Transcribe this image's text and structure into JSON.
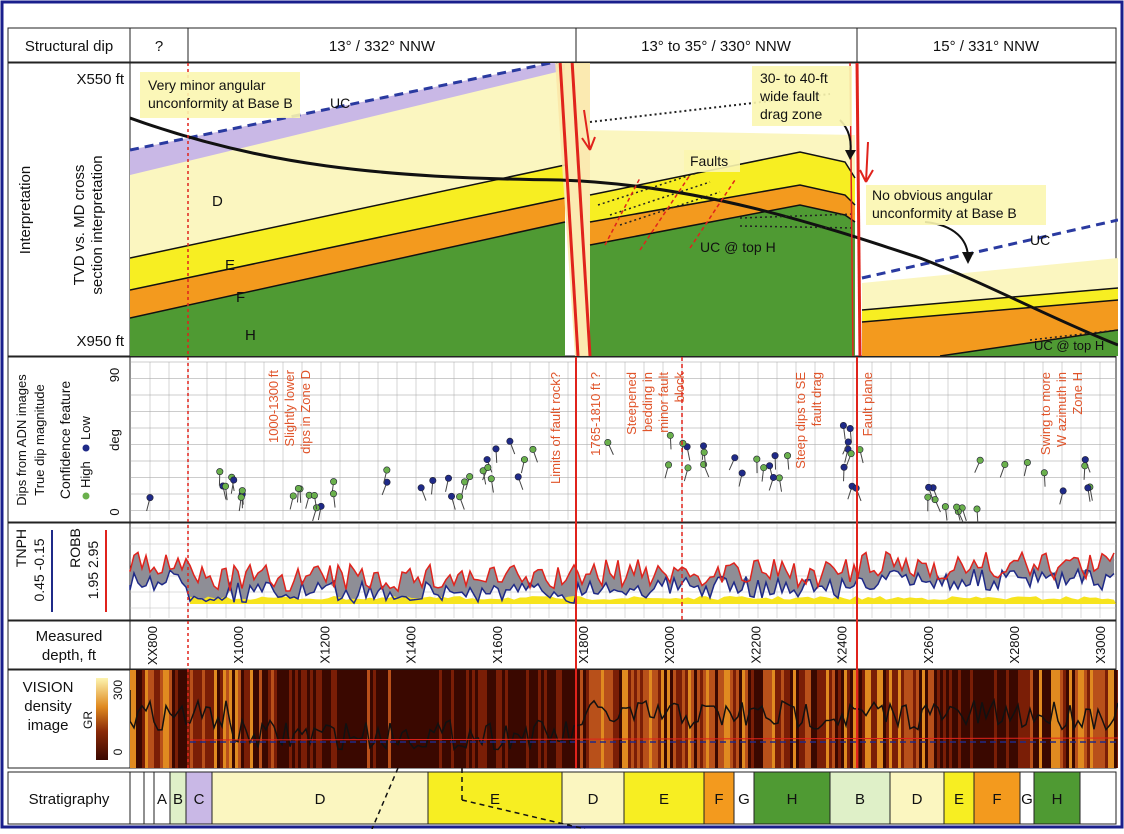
{
  "row_labels": {
    "structural_dip": "Structural dip",
    "interpretation": "Interpretation",
    "tvd_line1": "TVD vs. MD cross",
    "tvd_line2": "section interpretation",
    "top_depth": "X550 ft",
    "bottom_depth": "X950 ft",
    "dips_line1": "Dips from ADN images",
    "dips_line2": "True dip magnitude",
    "confidence_line": "Confidence feature",
    "high_label": "High",
    "low_label": "Low",
    "dip_top": "90",
    "dip_unit": "deg",
    "dip_bottom": "0",
    "tnph_label": "TNPH",
    "tnph_range": "0.45 -0.15",
    "robb_label": "ROBB",
    "robb_range": "1.95  2.95",
    "md_line1": "Measured",
    "md_line2": "depth, ft",
    "vision_line1": "VISION",
    "vision_line2": "density",
    "vision_line3": "image",
    "gr_label": "GR",
    "gr_max": "300",
    "gr_min": "0",
    "strat_label": "Stratigraphy"
  },
  "structural_dips": [
    "?",
    "13° / 332° NNW",
    "13° to 35° / 330° NNW",
    "15° / 331° NNW"
  ],
  "interpretation_annotations": {
    "unconformity_b": [
      "Very minor angular",
      "unconformity at Base B"
    ],
    "uc": "UC",
    "drag_zone": [
      "30- to 40-ft",
      "wide fault",
      "drag zone"
    ],
    "faults": "Faults",
    "no_unconformity": [
      "No obvious angular",
      "unconformity at Base B"
    ],
    "uc_top_h": "UC @ top H",
    "uc_right": "UC",
    "uc_top_h_right": "UC @ top H",
    "zone_d": "D",
    "zone_e": "E",
    "zone_f": "F",
    "zone_h": "H"
  },
  "dip_annotations": [
    [
      "1000-1300 ft",
      "Slightly lower",
      "dips in Zone D"
    ],
    [
      "Limits of fault rock?"
    ],
    [
      "1765-1810 ft ?"
    ],
    [
      "Steepened",
      "bedding in",
      "minor fault",
      "block"
    ],
    [
      "Steep dips to SE",
      "fault drag"
    ],
    [
      "Fault plane"
    ],
    [
      "Swing to more",
      "W azimuth in",
      "Zone H"
    ]
  ],
  "depth_ticks": [
    "XX800",
    "X1000",
    "X1200",
    "X1400",
    "X1600",
    "X1800",
    "X2000",
    "X2200",
    "X2400",
    "X2600",
    "X2800",
    "X3000"
  ],
  "stratigraphy": [
    {
      "label": "",
      "color": "#ffffff",
      "w": 10
    },
    {
      "label": "A",
      "color": "#ffffff",
      "w": 16
    },
    {
      "label": "B",
      "color": "#dff0c8",
      "w": 16
    },
    {
      "label": "C",
      "color": "#c9b8e6",
      "w": 26
    },
    {
      "label": "D",
      "color": "#fbf6c0",
      "w": 216
    },
    {
      "label": "E",
      "color": "#f7ee22",
      "w": 134
    },
    {
      "label": "D",
      "color": "#fbf6c0",
      "w": 62
    },
    {
      "label": "E",
      "color": "#f7ee22",
      "w": 80
    },
    {
      "label": "F",
      "color": "#f39a1e",
      "w": 30
    },
    {
      "label": "G",
      "color": "#ffffff",
      "w": 20
    },
    {
      "label": "H",
      "color": "#4f9a33",
      "w": 76
    },
    {
      "label": "B",
      "color": "#dff0c8",
      "w": 60
    },
    {
      "label": "D",
      "color": "#fbf6c0",
      "w": 54
    },
    {
      "label": "E",
      "color": "#f7ee22",
      "w": 30
    },
    {
      "label": "F",
      "color": "#f39a1e",
      "w": 46
    },
    {
      "label": "G",
      "color": "#ffffff",
      "w": 14
    },
    {
      "label": "H",
      "color": "#4f9a33",
      "w": 46
    }
  ],
  "colors": {
    "frame": "#1a1f8c",
    "fault": "#e0231c",
    "zone_d": "#fbf6c0",
    "zone_e": "#f7ee22",
    "zone_f": "#f39a1e",
    "zone_h": "#4f9a33",
    "unconformity": "#2a3aa0",
    "high_conf": "#6ab04c",
    "low_conf": "#1f2a88",
    "callout_bg": "#fbf6b0"
  }
}
